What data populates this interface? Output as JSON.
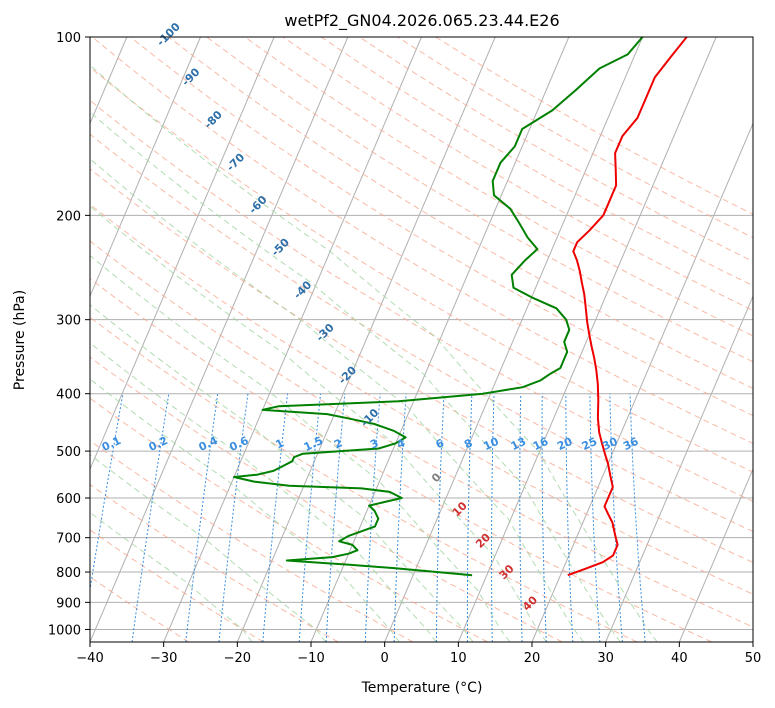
{
  "chart_data": {
    "type": "line",
    "title": "wetPf2_GN04.2026.065.23.44.E26",
    "xlabel": "Temperature (°C)",
    "ylabel": "Pressure (hPa)",
    "xlim": [
      -40,
      50
    ],
    "ylim": [
      1050,
      100
    ],
    "y_scale": "log",
    "grid": true,
    "x_ticks": [
      -40,
      -30,
      -20,
      -10,
      0,
      10,
      20,
      30,
      40,
      50
    ],
    "y_ticks": [
      100,
      200,
      300,
      400,
      500,
      600,
      700,
      800,
      900,
      1000
    ],
    "series": [
      {
        "color": "#ee0000",
        "points": [
          [
            21,
            810
          ],
          [
            23,
            790
          ],
          [
            25,
            770
          ],
          [
            26,
            750
          ],
          [
            26,
            720
          ],
          [
            25,
            690
          ],
          [
            24,
            660
          ],
          [
            23,
            640
          ],
          [
            22,
            620
          ],
          [
            22,
            600
          ],
          [
            22,
            575
          ],
          [
            21,
            550
          ],
          [
            20,
            525
          ],
          [
            19,
            505
          ],
          [
            18,
            485
          ],
          [
            17,
            465
          ],
          [
            16,
            440
          ],
          [
            15,
            410
          ],
          [
            14,
            385
          ],
          [
            13,
            365
          ],
          [
            12,
            348
          ],
          [
            11,
            333
          ],
          [
            10,
            318
          ],
          [
            9,
            303
          ],
          [
            8,
            287
          ],
          [
            7,
            272
          ],
          [
            6,
            260
          ],
          [
            5,
            248
          ],
          [
            4,
            238
          ],
          [
            3,
            230
          ],
          [
            3,
            222
          ],
          [
            4,
            212
          ],
          [
            5,
            200
          ],
          [
            5,
            190
          ],
          [
            5,
            178
          ],
          [
            4,
            167
          ],
          [
            3,
            157
          ],
          [
            3,
            147
          ],
          [
            4,
            137
          ],
          [
            4,
            127
          ],
          [
            4,
            117
          ],
          [
            5,
            108
          ],
          [
            6,
            100
          ]
        ]
      },
      {
        "color": "#008000",
        "points": [
          [
            8,
            810
          ],
          [
            3,
            800
          ],
          [
            -3,
            788
          ],
          [
            -9,
            778
          ],
          [
            -18,
            765
          ],
          [
            -12,
            755
          ],
          [
            -10,
            745
          ],
          [
            -9,
            735
          ],
          [
            -10,
            720
          ],
          [
            -12,
            710
          ],
          [
            -11,
            695
          ],
          [
            -8,
            670
          ],
          [
            -8,
            650
          ],
          [
            -9,
            630
          ],
          [
            -10,
            618
          ],
          [
            -6,
            600
          ],
          [
            -8,
            586
          ],
          [
            -12,
            578
          ],
          [
            -22,
            572
          ],
          [
            -27,
            563
          ],
          [
            -30,
            553
          ],
          [
            -27,
            548
          ],
          [
            -25,
            540
          ],
          [
            -24,
            530
          ],
          [
            -23,
            520
          ],
          [
            -23,
            512
          ],
          [
            -22,
            505
          ],
          [
            -12,
            495
          ],
          [
            -10,
            485
          ],
          [
            -9,
            474
          ],
          [
            -11,
            462
          ],
          [
            -14,
            450
          ],
          [
            -18,
            440
          ],
          [
            -21,
            433
          ],
          [
            -30,
            426
          ],
          [
            -28,
            420
          ],
          [
            -12,
            412
          ],
          [
            -1,
            400
          ],
          [
            4,
            390
          ],
          [
            6,
            380
          ],
          [
            7,
            370
          ],
          [
            8,
            362
          ],
          [
            8,
            352
          ],
          [
            8,
            340
          ],
          [
            7,
            327
          ],
          [
            7,
            312
          ],
          [
            6,
            300
          ],
          [
            4,
            287
          ],
          [
            0,
            275
          ],
          [
            -3,
            265
          ],
          [
            -4,
            252
          ],
          [
            -3,
            238
          ],
          [
            -2,
            228
          ],
          [
            -4,
            218
          ],
          [
            -6,
            206
          ],
          [
            -8,
            195
          ],
          [
            -11,
            185
          ],
          [
            -12,
            175
          ],
          [
            -12,
            163
          ],
          [
            -11,
            153
          ],
          [
            -11,
            143
          ],
          [
            -8,
            133
          ],
          [
            -6,
            123
          ],
          [
            -4,
            113
          ],
          [
            -1,
            107
          ],
          [
            0,
            100
          ]
        ]
      }
    ],
    "dry_adiabat_labels": [
      "-100",
      "-90",
      "-80",
      "-70",
      "-60",
      "-50",
      "-40",
      "-30",
      "-20",
      "-10",
      "0",
      "10",
      "20",
      "30",
      "40"
    ],
    "mixing_ratio_labels": [
      "0.1",
      "0.2",
      "0.4",
      "0.6",
      "1",
      "1.5",
      "2",
      "3",
      "4",
      "6",
      "8",
      "10",
      "13",
      "16",
      "20",
      "25",
      "30",
      "36"
    ]
  }
}
